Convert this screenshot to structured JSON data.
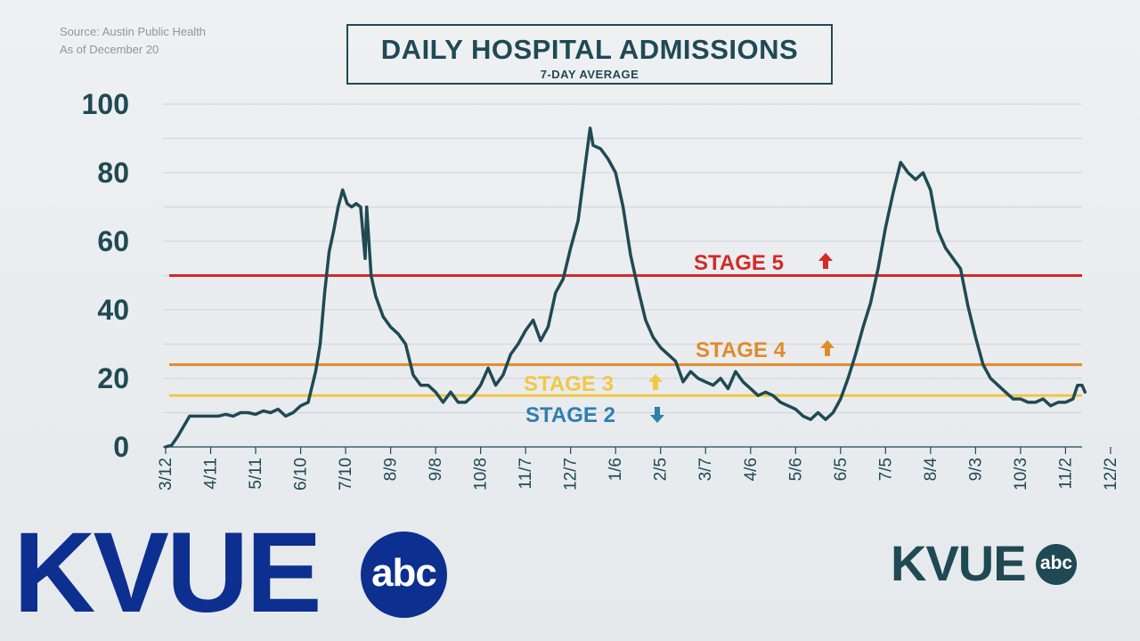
{
  "source": {
    "line1": "Source: Austin Public Health",
    "line2": "As of December 20"
  },
  "logos": {
    "main": "KVUE",
    "network": "abc"
  },
  "colors": {
    "series": "#1f4a54",
    "stage5": "#d32a2a",
    "stage4": "#e08b2a",
    "stage3": "#f2c744",
    "stage2": "#2f7fb0"
  },
  "chart_data": {
    "type": "line",
    "title": "DAILY HOSPITAL ADMISSIONS",
    "subtitle": "7-DAY AVERAGE",
    "xlabel": "",
    "ylabel": "",
    "ylim": [
      0,
      100
    ],
    "yticks": [
      0,
      20,
      40,
      60,
      80,
      100
    ],
    "grid": true,
    "x_tick_labels": [
      "3/12",
      "4/11",
      "5/11",
      "6/10",
      "7/10",
      "8/9",
      "9/8",
      "10/8",
      "11/7",
      "12/7",
      "1/6",
      "2/5",
      "3/7",
      "4/6",
      "5/6",
      "6/5",
      "7/5",
      "8/4",
      "9/3",
      "10/3",
      "11/2",
      "12/2"
    ],
    "x_tick_spacing_days": 30,
    "series": [
      {
        "points": [
          [
            0,
            0
          ],
          [
            4,
            0.5
          ],
          [
            8,
            3
          ],
          [
            12,
            6
          ],
          [
            16,
            9
          ],
          [
            20,
            9
          ],
          [
            25,
            9
          ],
          [
            30,
            9
          ],
          [
            35,
            9
          ],
          [
            40,
            9.5
          ],
          [
            45,
            9
          ],
          [
            50,
            10
          ],
          [
            55,
            10
          ],
          [
            60,
            9.5
          ],
          [
            65,
            10.5
          ],
          [
            70,
            10
          ],
          [
            75,
            11
          ],
          [
            80,
            9
          ],
          [
            85,
            10
          ],
          [
            90,
            12
          ],
          [
            95,
            13
          ],
          [
            100,
            22
          ],
          [
            103,
            30
          ],
          [
            106,
            45
          ],
          [
            109,
            57
          ],
          [
            112,
            63
          ],
          [
            115,
            70
          ],
          [
            118,
            75
          ],
          [
            121,
            71
          ],
          [
            124,
            70
          ],
          [
            127,
            71
          ],
          [
            130,
            70
          ],
          [
            133,
            55
          ],
          [
            134,
            70
          ],
          [
            137,
            50
          ],
          [
            140,
            44
          ],
          [
            145,
            38
          ],
          [
            150,
            35
          ],
          [
            155,
            33
          ],
          [
            160,
            30
          ],
          [
            165,
            21
          ],
          [
            170,
            18
          ],
          [
            175,
            18
          ],
          [
            180,
            16
          ],
          [
            185,
            13
          ],
          [
            190,
            16
          ],
          [
            195,
            13
          ],
          [
            200,
            13
          ],
          [
            205,
            15
          ],
          [
            210,
            18
          ],
          [
            215,
            23
          ],
          [
            220,
            18
          ],
          [
            225,
            21
          ],
          [
            230,
            27
          ],
          [
            235,
            30
          ],
          [
            240,
            34
          ],
          [
            245,
            37
          ],
          [
            250,
            31
          ],
          [
            255,
            35
          ],
          [
            260,
            45
          ],
          [
            265,
            49
          ],
          [
            270,
            58
          ],
          [
            275,
            66
          ],
          [
            280,
            83
          ],
          [
            283,
            93
          ],
          [
            285,
            88
          ],
          [
            290,
            87
          ],
          [
            295,
            84
          ],
          [
            300,
            80
          ],
          [
            305,
            70
          ],
          [
            310,
            56
          ],
          [
            315,
            46
          ],
          [
            320,
            37
          ],
          [
            325,
            32
          ],
          [
            330,
            29
          ],
          [
            335,
            27
          ],
          [
            340,
            25
          ],
          [
            345,
            19
          ],
          [
            350,
            22
          ],
          [
            355,
            20
          ],
          [
            360,
            19
          ],
          [
            365,
            18
          ],
          [
            370,
            20
          ],
          [
            375,
            17
          ],
          [
            380,
            22
          ],
          [
            385,
            19
          ],
          [
            390,
            17
          ],
          [
            395,
            15
          ],
          [
            400,
            16
          ],
          [
            405,
            15
          ],
          [
            410,
            13
          ],
          [
            415,
            12
          ],
          [
            420,
            11
          ],
          [
            425,
            9
          ],
          [
            430,
            8
          ],
          [
            435,
            10
          ],
          [
            440,
            8
          ],
          [
            445,
            10
          ],
          [
            450,
            14
          ],
          [
            455,
            20
          ],
          [
            460,
            27
          ],
          [
            465,
            35
          ],
          [
            470,
            42
          ],
          [
            475,
            52
          ],
          [
            480,
            64
          ],
          [
            485,
            74
          ],
          [
            490,
            83
          ],
          [
            495,
            80
          ],
          [
            500,
            78
          ],
          [
            505,
            80
          ],
          [
            510,
            75
          ],
          [
            515,
            63
          ],
          [
            520,
            58
          ],
          [
            525,
            55
          ],
          [
            530,
            52
          ],
          [
            535,
            41
          ],
          [
            540,
            32
          ],
          [
            545,
            24
          ],
          [
            550,
            20
          ],
          [
            555,
            18
          ],
          [
            560,
            16
          ],
          [
            565,
            14
          ],
          [
            570,
            14
          ],
          [
            575,
            13
          ],
          [
            580,
            13
          ],
          [
            585,
            14
          ],
          [
            590,
            12
          ],
          [
            595,
            13
          ],
          [
            600,
            13
          ],
          [
            605,
            14
          ],
          [
            608,
            18
          ],
          [
            611,
            18
          ],
          [
            613,
            16
          ]
        ]
      }
    ],
    "reference_lines": [
      {
        "label": "STAGE 5",
        "arrow": "up",
        "value": 50,
        "color": "#d32a2a"
      },
      {
        "label": "STAGE 4",
        "arrow": "up",
        "value": 24,
        "color": "#e08b2a"
      },
      {
        "label": "STAGE 3",
        "arrow": "up",
        "value": 15,
        "color": "#f2c744"
      },
      {
        "label": "STAGE 2",
        "arrow": "down",
        "value": 15,
        "color": "#2f7fb0"
      }
    ]
  }
}
